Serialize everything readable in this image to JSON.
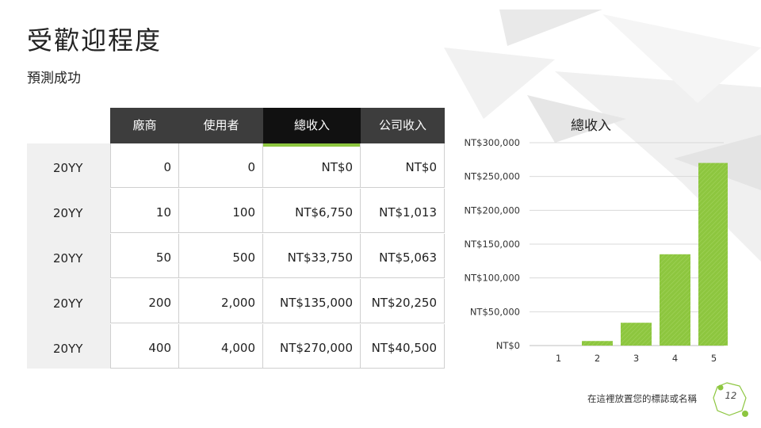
{
  "slide": {
    "title": "受歡迎程度",
    "subtitle": "預測成功",
    "logo_text": "在這裡放置您的標誌或名稱",
    "page_number": "12"
  },
  "table": {
    "headers": [
      "廠商",
      "使用者",
      "總收入",
      "公司收入"
    ],
    "highlighted_column": 2,
    "rows": [
      {
        "label": "20YY",
        "cells": [
          "0",
          "0",
          "NT$0",
          "NT$0"
        ]
      },
      {
        "label": "20YY",
        "cells": [
          "10",
          "100",
          "NT$6,750",
          "NT$1,013"
        ]
      },
      {
        "label": "20YY",
        "cells": [
          "50",
          "500",
          "NT$33,750",
          "NT$5,063"
        ]
      },
      {
        "label": "20YY",
        "cells": [
          "200",
          "2,000",
          "NT$135,000",
          "NT$20,250"
        ]
      },
      {
        "label": "20YY",
        "cells": [
          "400",
          "4,000",
          "NT$270,000",
          "NT$40,500"
        ]
      }
    ]
  },
  "colors": {
    "accent_green": "#8dc63f",
    "header_dark": "#3d3d3d",
    "header_highlight": "#111111",
    "row_band": "#f0f0f0"
  },
  "chart_data": {
    "type": "bar",
    "title": "總收入",
    "categories": [
      "1",
      "2",
      "3",
      "4",
      "5"
    ],
    "values": [
      0,
      6750,
      33750,
      135000,
      270000
    ],
    "ylim": [
      0,
      300000
    ],
    "yticks": [
      0,
      50000,
      100000,
      150000,
      200000,
      250000,
      300000
    ],
    "ytick_labels": [
      "NT$0",
      "NT$50,000",
      "NT$100,000",
      "NT$150,000",
      "NT$200,000",
      "NT$250,000",
      "NT$300,000"
    ],
    "grid": true,
    "bar_color": "#8dc63f"
  }
}
